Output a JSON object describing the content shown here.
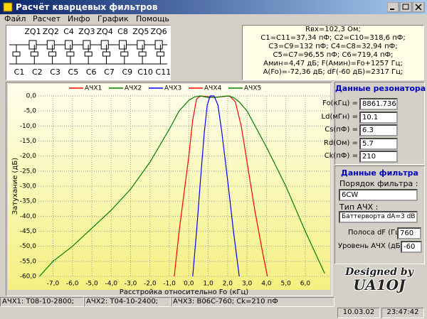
{
  "window": {
    "title": "Расчёт кварцевых фильтров"
  },
  "menu": [
    "Файл",
    "Расчет",
    "Инфо",
    "График",
    "Помощь"
  ],
  "schematic": {
    "top_labels": [
      "ZQ1",
      "ZQ2",
      "C4",
      "ZQ3",
      "ZQ4",
      "C8",
      "ZQ5",
      "ZQ6"
    ],
    "bottom_labels": [
      "C1",
      "C2",
      "C3",
      "C5",
      "C6",
      "C7",
      "C9",
      "C10",
      "C11"
    ]
  },
  "info": [
    "Rвх=102,3 Ом;",
    "C1=C11=37,34 пФ; C2=C10=318,6 пФ;",
    "C3=C9=132 пФ; C4=C8=32,94 пФ;",
    "C5=C7=96,55 пФ;  C6=719,4 пФ;",
    "Амин=4,47 дБ; F(Амин)=Fo+1257 Гц;",
    "A(Fo)=-72,36 дБ; dF(-60 дБ)=2317 Гц;"
  ],
  "resonator": {
    "title": "Данные резонатора",
    "fields": [
      {
        "label": "Fo(кГц) =",
        "value": "8861.736"
      },
      {
        "label": "Ld(мГн) =",
        "value": "10.1"
      },
      {
        "label": "Cs(пФ) =",
        "value": "6.3"
      },
      {
        "label": "Rd(Ом) =",
        "value": "5.7"
      },
      {
        "label": "Ck(пФ) =",
        "value": "210"
      }
    ]
  },
  "filter": {
    "title": "Данные фильтра",
    "order_label": "Порядок фильтра :",
    "order_value": "6CW",
    "type_label": "Тип АЧХ :",
    "type_value": "Баттерворта dA=3 dB",
    "band_label": "Полоса dF (Гц) =",
    "band_value": "760",
    "level_label": "Уровень АЧХ (дБ) =",
    "level_value": "-60"
  },
  "branding": {
    "line1": "Designed by",
    "line2": "UA1OJ"
  },
  "status": {
    "items": [
      "АЧХ1: T08-10-2800;",
      "АЧХ2: T04-10-2400;",
      "АЧХ3: B06C-760; Ck=210 пФ"
    ],
    "date": "10.03.02",
    "time": "23:47:42"
  },
  "chart_data": {
    "type": "line",
    "xlabel": "Расстройка относительно Fo (кГц)",
    "ylabel": "Затухание (дБ)",
    "grid": true,
    "xlim": [
      -7.75,
      7.25
    ],
    "ylim": [
      -60,
      0
    ],
    "xticks": [
      {
        "value": -7,
        "label": "-7,0"
      },
      {
        "value": -6,
        "label": "-6,0"
      },
      {
        "value": -5,
        "label": "-5,0"
      },
      {
        "value": -4,
        "label": "-4,0"
      },
      {
        "value": -3,
        "label": "-3,0"
      },
      {
        "value": -2,
        "label": "-2,0"
      },
      {
        "value": -1,
        "label": "-1,0"
      },
      {
        "value": 0,
        "label": "0,0"
      },
      {
        "value": 1,
        "label": "1,0"
      },
      {
        "value": 2,
        "label": "2,0"
      },
      {
        "value": 3,
        "label": "3,0"
      },
      {
        "value": 4,
        "label": "4,0"
      },
      {
        "value": 5,
        "label": "5,0"
      },
      {
        "value": 6,
        "label": "6,0"
      }
    ],
    "yticks": [
      {
        "value": 0,
        "label": "0,0"
      },
      {
        "value": -5,
        "label": "-5,0"
      },
      {
        "value": -10,
        "label": "-10,0"
      },
      {
        "value": -15,
        "label": "-15,0"
      },
      {
        "value": -20,
        "label": "-20,0"
      },
      {
        "value": -25,
        "label": "-25,0"
      },
      {
        "value": -30,
        "label": "-30,0"
      },
      {
        "value": -35,
        "label": "-35,0"
      },
      {
        "value": -40,
        "label": "-40,0"
      },
      {
        "value": -45,
        "label": "-45,0"
      },
      {
        "value": -50,
        "label": "-50,0"
      },
      {
        "value": -55,
        "label": "-55,0"
      },
      {
        "value": -60,
        "label": "-60,0"
      }
    ],
    "series": [
      {
        "name": "АЧХ1",
        "color": "#ff0000",
        "x": [
          -0.75,
          -0.5,
          -0.2,
          0,
          0.2,
          0.4,
          0.6,
          1.3,
          2.1,
          2.4,
          2.7,
          3.0,
          3.4,
          3.8,
          4.05
        ],
        "values": [
          -60,
          -45,
          -30,
          -20,
          -8,
          -1,
          0,
          -0.5,
          0,
          -2,
          -10,
          -22,
          -38,
          -52,
          -60
        ]
      },
      {
        "name": "АЧХ2",
        "color": "#008000",
        "x": [
          -7.7,
          -7,
          -6,
          -5,
          -4,
          -3,
          -2,
          -1,
          -0.5,
          0,
          0.3,
          0.6,
          1.0,
          1.5,
          2.0,
          2.3,
          2.6,
          3.0,
          4.0,
          5.0,
          6.0,
          7.0
        ],
        "values": [
          -60,
          -55,
          -50,
          -44,
          -38,
          -31,
          -22,
          -11,
          -5,
          -1.5,
          -0.3,
          0,
          -0.5,
          -0.4,
          0,
          -0.5,
          -2,
          -5,
          -17,
          -30,
          -45,
          -59
        ]
      },
      {
        "name": "АЧХ3",
        "color": "#0000ff",
        "x": [
          0.2,
          0.4,
          0.6,
          0.8,
          0.95,
          1.1,
          1.3,
          1.5,
          1.7,
          2.0,
          2.3,
          2.6
        ],
        "values": [
          -60,
          -45,
          -28,
          -12,
          -3,
          0,
          0,
          -3,
          -12,
          -28,
          -45,
          -60
        ]
      },
      {
        "name": "АЧХ4",
        "color": "#ff0000"
      },
      {
        "name": "АЧХ5",
        "color": "#008000"
      }
    ]
  }
}
